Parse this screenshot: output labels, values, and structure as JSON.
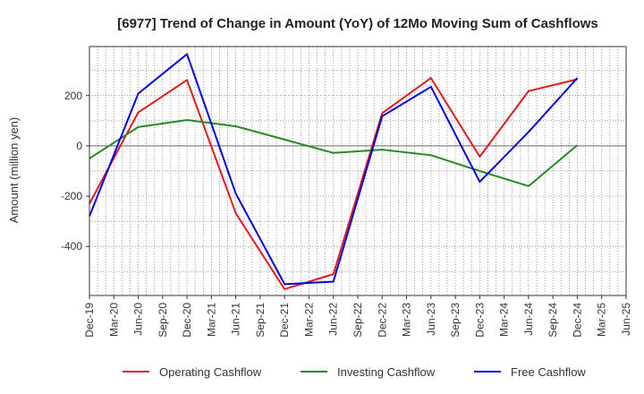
{
  "chart_data": {
    "type": "line",
    "title": "[6977]  Trend of Change in Amount (YoY) of 12Mo Moving Sum of Cashflows",
    "xlabel": "",
    "ylabel": "Amount (million yen)",
    "categories": [
      "Dec-19",
      "Mar-20",
      "Jun-20",
      "Sep-20",
      "Dec-20",
      "Mar-21",
      "Jun-21",
      "Sep-21",
      "Dec-21",
      "Mar-22",
      "Jun-22",
      "Sep-22",
      "Dec-22",
      "Mar-23",
      "Jun-23",
      "Sep-23",
      "Dec-23",
      "Mar-24",
      "Jun-24",
      "Sep-24",
      "Dec-24",
      "Mar-25",
      "Jun-25"
    ],
    "ylim": [
      -595,
      395
    ],
    "yticks": [
      -400,
      -200,
      0,
      200
    ],
    "ytick_labels": [
      "-400",
      "-200",
      "0",
      "200"
    ],
    "series": [
      {
        "name": "Operating Cashflow",
        "color": "#e31a1c",
        "values": [
          -230,
          null,
          133,
          null,
          262,
          null,
          -268,
          null,
          -570,
          null,
          -510,
          null,
          130,
          null,
          270,
          null,
          -43,
          null,
          218,
          null,
          265,
          null,
          null
        ]
      },
      {
        "name": "Investing Cashflow",
        "color": "#228b22",
        "values": [
          -50,
          null,
          75,
          null,
          103,
          null,
          78,
          null,
          25,
          null,
          -28,
          null,
          -15,
          null,
          -37,
          null,
          -100,
          null,
          -160,
          null,
          3,
          null,
          null
        ]
      },
      {
        "name": "Free Cashflow",
        "color": "#0000e0",
        "values": [
          -280,
          null,
          208,
          null,
          365,
          null,
          -190,
          null,
          -550,
          null,
          -540,
          null,
          118,
          null,
          235,
          null,
          -143,
          null,
          55,
          null,
          270,
          null,
          null
        ]
      }
    ],
    "legend_position": "bottom"
  }
}
